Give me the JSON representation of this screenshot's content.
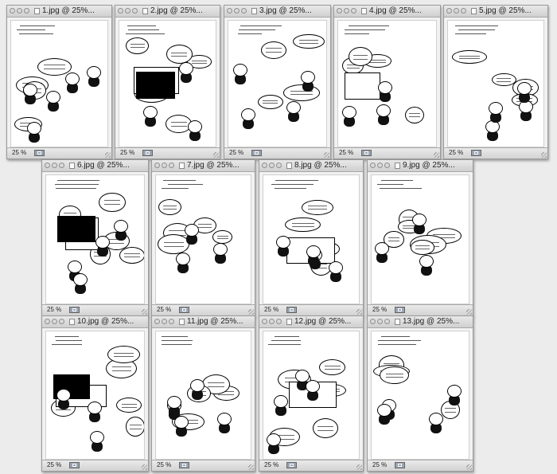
{
  "windows": [
    {
      "title": "1.jpg @ 25%..."
    },
    {
      "title": "2.jpg @ 25%..."
    },
    {
      "title": "3.jpg @ 25%..."
    },
    {
      "title": "4.jpg @ 25%..."
    },
    {
      "title": "5.jpg @ 25%..."
    },
    {
      "title": "6.jpg @ 25%..."
    },
    {
      "title": "7.jpg @ 25%..."
    },
    {
      "title": "8.jpg @ 25%..."
    },
    {
      "title": "9.jpg @ 25%..."
    },
    {
      "title": "10.jpg @ 25%..."
    },
    {
      "title": "11.jpg @ 25%..."
    },
    {
      "title": "12.jpg @ 25%..."
    },
    {
      "title": "13.jpg @ 25%..."
    }
  ],
  "zoom_label": "25 %",
  "icons": {
    "close": "close-icon",
    "minimize": "minimize-icon",
    "zoom": "zoom-icon",
    "document": "document-icon",
    "status": "image-mode-icon",
    "resize": "resize-grip-icon"
  },
  "colors": {
    "desktop": "#ececec",
    "page": "#ffffff",
    "ink": "#000000"
  }
}
